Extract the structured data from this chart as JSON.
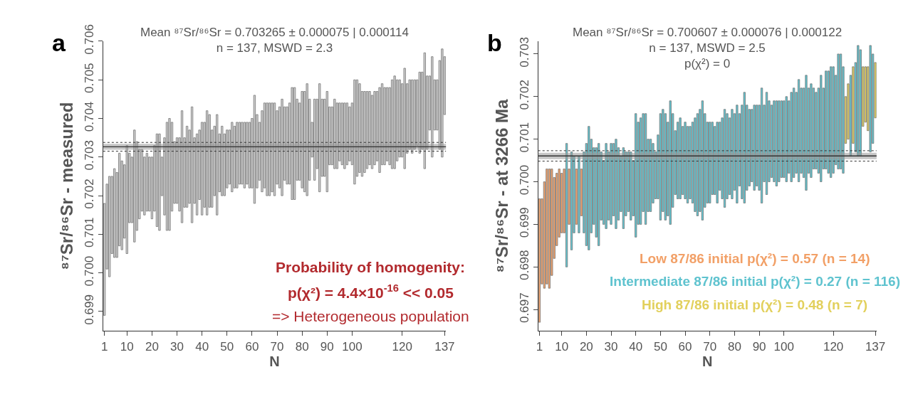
{
  "chart_data": [
    {
      "type": "bar",
      "title": "a",
      "subtitle": "Mean ⁸⁷Sr/⁸⁶Sr = 0.703265 ± 0.000075 | 0.000114\nn = 137, MSWD = 2.3",
      "xlabel": "N",
      "ylabel": "⁸⁷Sr/⁸⁶Sr - measured",
      "annotations": [
        "Probability of homogenity:",
        "p(χ²) = 4.4×10$^{-16}$ << 0.05",
        "=> Heterogeneous population"
      ],
      "xlim": [
        0.5,
        137.5
      ],
      "xticks": [
        1,
        10,
        20,
        30,
        40,
        50,
        60,
        70,
        80,
        90,
        100,
        120,
        137
      ],
      "ylim": [
        0.6985,
        0.706
      ],
      "yticks": [
        0.699,
        {
          "value": 0.7,
          "label": "0.700"
        },
        0.701,
        0.702,
        0.703,
        0.704,
        0.705,
        0.706
      ],
      "bands": [
        {
          "axis": "y",
          "from": 0.70319,
          "to": 0.70334,
          "color": "#999999"
        }
      ],
      "ref_lines": [
        {
          "axis": "y",
          "value": 0.703265,
          "color": "#333333",
          "line_style": "solid"
        },
        {
          "axis": "y",
          "value": 0.703151,
          "color": "#333333",
          "line_style": "dotted"
        },
        {
          "axis": "y",
          "value": 0.703379,
          "color": "#333333",
          "line_style": "dotted"
        }
      ],
      "series": [
        {
          "color": "#cccccc",
          "x": [
            1,
            2,
            3,
            4,
            5,
            6,
            7,
            8,
            9,
            10,
            11,
            12,
            13,
            14,
            15,
            16,
            17,
            18,
            19,
            20,
            21,
            22,
            23,
            24,
            25,
            26,
            27,
            28,
            29,
            30,
            31,
            32,
            33,
            34,
            35,
            36,
            37,
            38,
            39,
            40,
            41,
            42,
            43,
            44,
            45,
            46,
            47,
            48,
            49,
            50,
            51,
            52,
            53,
            54,
            55,
            56,
            57,
            58,
            59,
            60,
            61,
            62,
            63,
            64,
            65,
            66,
            67,
            68,
            69,
            70,
            71,
            72,
            73,
            74,
            75,
            76,
            77,
            78,
            79,
            80,
            81,
            82,
            83,
            84,
            85,
            86,
            87,
            88,
            89,
            90,
            91,
            92,
            93,
            94,
            95,
            96,
            97,
            98,
            99,
            100,
            101,
            102,
            103,
            104,
            105,
            106,
            107,
            108,
            109,
            110,
            111,
            112,
            113,
            114,
            115,
            116,
            117,
            118,
            119,
            120,
            121,
            122,
            123,
            124,
            125,
            126,
            127,
            128,
            129,
            130,
            131,
            132,
            133,
            134,
            135,
            136,
            137
          ],
          "base": [
            0.6989,
            0.7001,
            0.6999,
            0.7005,
            0.7004,
            0.7004,
            0.7007,
            0.7006,
            0.7009,
            0.7005,
            0.7013,
            0.7013,
            0.7008,
            0.7011,
            0.7014,
            0.7016,
            0.7015,
            0.7016,
            0.7016,
            0.7014,
            0.7016,
            0.7012,
            0.7011,
            0.702,
            0.7015,
            0.7011,
            0.7011,
            0.7016,
            0.7018,
            0.7018,
            0.7016,
            0.7013,
            0.7017,
            0.7017,
            0.7018,
            0.7013,
            0.7018,
            0.7015,
            0.7019,
            0.7015,
            0.7017,
            0.7015,
            0.7017,
            0.7017,
            0.702,
            0.7015,
            0.7021,
            0.702,
            0.702,
            0.7022,
            0.7023,
            0.7021,
            0.7022,
            0.7022,
            0.7023,
            0.7023,
            0.7022,
            0.7023,
            0.7022,
            0.7022,
            0.7018,
            0.7022,
            0.7024,
            0.7021,
            0.7022,
            0.702,
            0.702,
            0.7021,
            0.702,
            0.7023,
            0.7022,
            0.702,
            0.7024,
            0.7023,
            0.7023,
            0.7019,
            0.7019,
            0.7024,
            0.7024,
            0.7022,
            0.7021,
            0.702,
            0.7024,
            0.703,
            0.7024,
            0.7027,
            0.7021,
            0.7025,
            0.7025,
            0.7021,
            0.7028,
            0.7028,
            0.7027,
            0.7027,
            0.7029,
            0.7028,
            0.7027,
            0.7028,
            0.7029,
            0.7028,
            0.7023,
            0.7025,
            0.7026,
            0.7025,
            0.7026,
            0.7027,
            0.7028,
            0.7027,
            0.7028,
            0.7029,
            0.7026,
            0.7028,
            0.7028,
            0.7029,
            0.7028,
            0.7027,
            0.7027,
            0.7029,
            0.703,
            0.703,
            0.7027,
            0.7031,
            0.7032,
            0.7031,
            0.7032,
            0.7033,
            0.7031,
            0.7032,
            0.7027,
            0.7032,
            0.7037,
            0.703,
            0.7037,
            0.7037,
            0.7032,
            0.703,
            0.7041
          ],
          "values": [
            0.0029,
            0.0022,
            0.0026,
            0.002,
            0.0023,
            0.0022,
            0.0024,
            0.0023,
            0.0019,
            0.0028,
            0.0018,
            0.0017,
            0.0029,
            0.0023,
            0.0018,
            0.0016,
            0.0015,
            0.0015,
            0.0014,
            0.0016,
            0.0017,
            0.0024,
            0.0025,
            0.001,
            0.002,
            0.0028,
            0.0029,
            0.0023,
            0.0016,
            0.0017,
            0.0019,
            0.0029,
            0.0018,
            0.0021,
            0.0019,
            0.003,
            0.0017,
            0.0021,
            0.0018,
            0.0024,
            0.0022,
            0.0027,
            0.0024,
            0.002,
            0.0018,
            0.0026,
            0.0015,
            0.0018,
            0.0016,
            0.0015,
            0.0014,
            0.0018,
            0.0016,
            0.0017,
            0.0016,
            0.0016,
            0.0017,
            0.0016,
            0.0017,
            0.0018,
            0.0028,
            0.0019,
            0.0015,
            0.0021,
            0.0022,
            0.0024,
            0.0024,
            0.0023,
            0.0024,
            0.0019,
            0.0021,
            0.0025,
            0.0019,
            0.002,
            0.0021,
            0.0029,
            0.0029,
            0.0021,
            0.002,
            0.0025,
            0.0026,
            0.0029,
            0.0021,
            0.0009,
            0.0021,
            0.0018,
            0.0028,
            0.002,
            0.002,
            0.0026,
            0.0015,
            0.0015,
            0.0018,
            0.0017,
            0.0015,
            0.0016,
            0.0017,
            0.0016,
            0.0014,
            0.0016,
            0.0027,
            0.0025,
            0.0023,
            0.0022,
            0.0021,
            0.002,
            0.0019,
            0.0019,
            0.0019,
            0.0018,
            0.0022,
            0.0021,
            0.002,
            0.0019,
            0.002,
            0.0023,
            0.0024,
            0.0021,
            0.002,
            0.0019,
            0.0026,
            0.0018,
            0.0018,
            0.0019,
            0.0018,
            0.0017,
            0.0021,
            0.002,
            0.003,
            0.0019,
            0.0014,
            0.0026,
            0.0013,
            0.0013,
            0.0023,
            0.0028,
            0.0015
          ]
        }
      ]
    },
    {
      "type": "bar",
      "title": "b",
      "subtitle": "Mean ⁸⁷Sr/⁸⁶Sr = 0.700607 ± 0.000076 | 0.000122\nn = 137, MSWD = 2.5\np(χ²) = 0",
      "xlabel": "N",
      "ylabel": "⁸⁷Sr/⁸⁶Sr - at 3266 Ma",
      "xlim": [
        0.5,
        137.5
      ],
      "xticks": [
        1,
        10,
        20,
        30,
        40,
        50,
        60,
        70,
        80,
        90,
        100,
        120,
        137
      ],
      "ylim": [
        0.6965,
        0.7033
      ],
      "yticks": [
        0.697,
        0.698,
        0.699,
        {
          "value": 0.7,
          "label": "0.700"
        },
        0.701,
        0.702,
        0.703
      ],
      "bands": [
        {
          "axis": "y",
          "from": 0.700531,
          "to": 0.700683,
          "color": "#999999"
        }
      ],
      "ref_lines": [
        {
          "axis": "y",
          "value": 0.700607,
          "color": "#333333",
          "line_style": "solid"
        },
        {
          "axis": "y",
          "value": 0.700485,
          "color": "#333333",
          "line_style": "dotted"
        },
        {
          "axis": "y",
          "value": 0.700729,
          "color": "#333333",
          "line_style": "dotted"
        }
      ],
      "series": [
        {
          "name": "Low 87/86 initial p(χ²) = 0.57 (n = 14)",
          "color": "#f2a067",
          "x": [
            1,
            2,
            3,
            4,
            5,
            6,
            7,
            8,
            9,
            10,
            11,
            13,
            16,
            18
          ],
          "base": [
            0.6967,
            0.6976,
            0.6975,
            0.6976,
            0.6975,
            0.6978,
            0.6982,
            0.6985,
            0.6987,
            0.6988,
            0.6988,
            0.699,
            0.699,
            0.6992
          ],
          "values": [
            0.0029,
            0.002,
            0.0025,
            0.0027,
            0.0028,
            0.0025,
            0.0019,
            0.0017,
            0.0016,
            0.0014,
            0.0015,
            0.0013,
            0.0013,
            0.0011
          ]
        },
        {
          "name": "Intermediate 87/86 initial p(χ²) = 0.27 (n = 116)",
          "color": "#5fc3cf",
          "x": [
            12,
            14,
            15,
            17,
            19,
            20,
            21,
            22,
            23,
            24,
            25,
            26,
            27,
            28,
            29,
            30,
            31,
            32,
            33,
            34,
            35,
            36,
            37,
            38,
            39,
            40,
            41,
            42,
            43,
            44,
            45,
            46,
            47,
            48,
            49,
            50,
            51,
            52,
            53,
            54,
            55,
            56,
            57,
            58,
            59,
            60,
            61,
            62,
            63,
            64,
            65,
            66,
            67,
            68,
            69,
            70,
            71,
            72,
            73,
            74,
            75,
            76,
            77,
            78,
            79,
            80,
            81,
            82,
            83,
            84,
            85,
            86,
            87,
            88,
            89,
            90,
            91,
            92,
            93,
            94,
            95,
            96,
            97,
            98,
            99,
            100,
            101,
            102,
            103,
            104,
            105,
            106,
            107,
            108,
            109,
            110,
            111,
            112,
            113,
            114,
            115,
            116,
            117,
            118,
            119,
            120,
            121,
            122,
            123,
            124,
            127,
            129,
            130,
            131,
            135,
            136
          ],
          "base": [
            0.698,
            0.6984,
            0.6988,
            0.6988,
            0.6988,
            0.6985,
            0.6984,
            0.6988,
            0.699,
            0.6987,
            0.6985,
            0.6991,
            0.699,
            0.6989,
            0.6991,
            0.699,
            0.6992,
            0.6989,
            0.6991,
            0.6993,
            0.6989,
            0.6992,
            0.6993,
            0.6991,
            0.6992,
            0.6987,
            0.699,
            0.699,
            0.6993,
            0.699,
            0.6993,
            0.6993,
            0.6995,
            0.6996,
            0.6996,
            0.6991,
            0.6993,
            0.6991,
            0.6992,
            0.699,
            0.6994,
            0.6997,
            0.6996,
            0.6996,
            0.6997,
            0.6996,
            0.6995,
            0.6996,
            0.6995,
            0.6993,
            0.6992,
            0.6993,
            0.6991,
            0.6994,
            0.6995,
            0.6995,
            0.6997,
            0.6997,
            0.6995,
            0.6998,
            0.6996,
            0.6994,
            0.6996,
            0.6997,
            0.6996,
            0.6998,
            0.6995,
            0.6999,
            0.6996,
            0.6995,
            0.6998,
            0.6999,
            0.7,
            0.6998,
            0.6999,
            0.6998,
            0.6995,
            0.7,
            0.6997,
            0.7,
            0.7001,
            0.7,
            0.6999,
            0.7,
            0.7001,
            0.7001,
            0.7,
            0.7002,
            0.7,
            0.7001,
            0.7002,
            0.7,
            0.7002,
            0.7001,
            0.6998,
            0.7002,
            0.7001,
            0.7003,
            0.7003,
            0.7002,
            0.7,
            0.7003,
            0.7003,
            0.7002,
            0.7001,
            0.7002,
            0.7004,
            0.7003,
            0.7003,
            0.7002,
            0.7006,
            0.7007,
            0.7006,
            0.7006,
            0.7007,
            0.7009
          ],
          "values": [
            0.0029,
            0.0023,
            0.0018,
            0.0018,
            0.0019,
            0.0024,
            0.0029,
            0.0022,
            0.0018,
            0.0021,
            0.0024,
            0.0016,
            0.0015,
            0.002,
            0.0016,
            0.0019,
            0.0017,
            0.0021,
            0.0017,
            0.0013,
            0.0019,
            0.0015,
            0.0014,
            0.0016,
            0.0013,
            0.0029,
            0.0024,
            0.0025,
            0.0023,
            0.0026,
            0.0017,
            0.0017,
            0.0014,
            0.0011,
            0.0015,
            0.0025,
            0.0024,
            0.0025,
            0.0022,
            0.0029,
            0.0022,
            0.0015,
            0.0018,
            0.0019,
            0.0016,
            0.0018,
            0.0018,
            0.0017,
            0.0019,
            0.0022,
            0.0024,
            0.0024,
            0.0028,
            0.0022,
            0.0019,
            0.0019,
            0.0017,
            0.0016,
            0.0019,
            0.0016,
            0.0019,
            0.0023,
            0.002,
            0.0018,
            0.0021,
            0.0018,
            0.0023,
            0.0017,
            0.0022,
            0.0026,
            0.002,
            0.0018,
            0.0017,
            0.002,
            0.0019,
            0.002,
            0.0027,
            0.0018,
            0.0024,
            0.0019,
            0.0017,
            0.0019,
            0.002,
            0.0019,
            0.0018,
            0.0018,
            0.002,
            0.0017,
            0.0021,
            0.0021,
            0.0019,
            0.0024,
            0.002,
            0.0021,
            0.0027,
            0.002,
            0.0022,
            0.0019,
            0.0018,
            0.002,
            0.0025,
            0.0019,
            0.0023,
            0.0024,
            0.0026,
            0.0025,
            0.0021,
            0.0027,
            0.0027,
            0.0025,
            0.0019,
            0.0021,
            0.0026,
            0.0025,
            0.0025,
            0.0021
          ]
        },
        {
          "name": "High 87/86 initial p(χ²) = 0.48 (n = 7)",
          "color": "#e2d05c",
          "x": [
            125,
            126,
            128,
            132,
            133,
            134,
            137
          ],
          "base": [
            0.7009,
            0.701,
            0.7009,
            0.7013,
            0.7014,
            0.7012,
            0.7015
          ],
          "values": [
            0.0011,
            0.0013,
            0.0018,
            0.0014,
            0.0013,
            0.0015,
            0.0013
          ]
        }
      ]
    }
  ]
}
